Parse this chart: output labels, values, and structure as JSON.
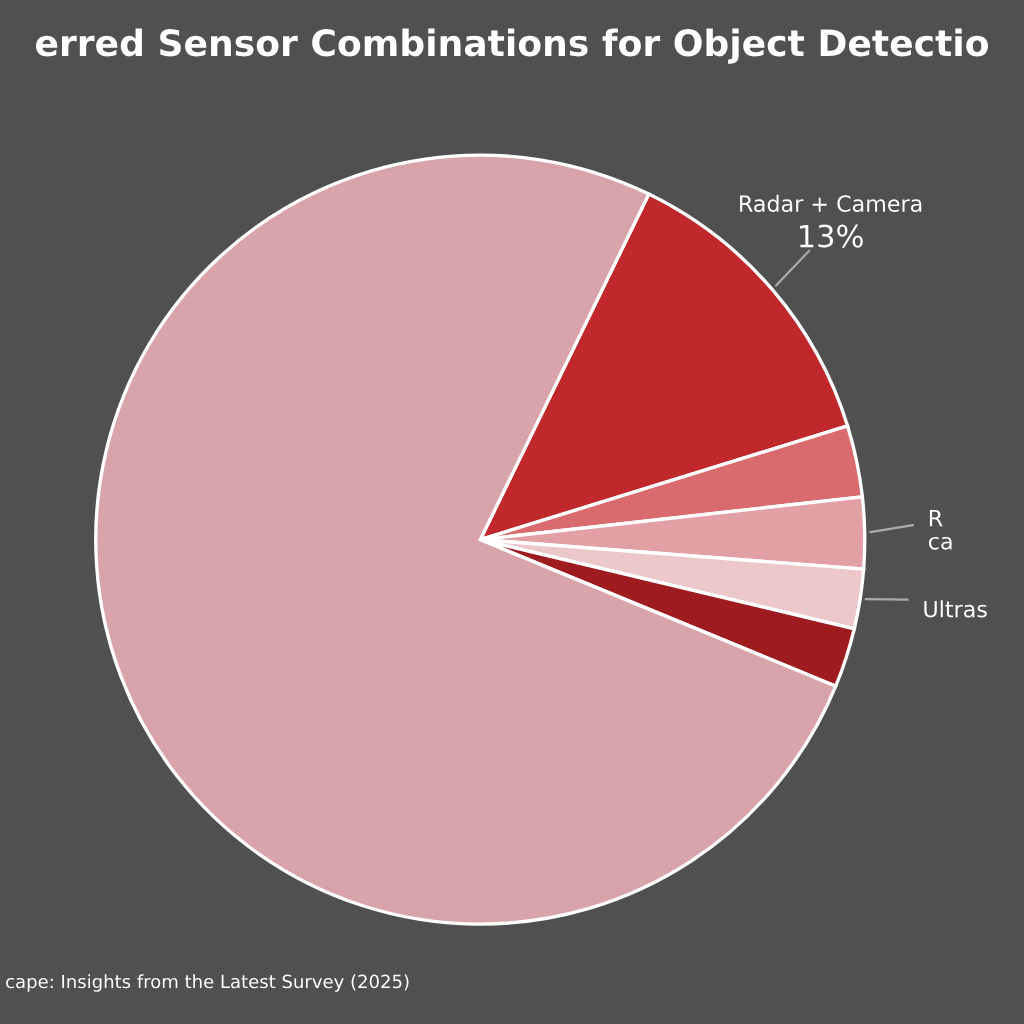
{
  "chart_data": {
    "type": "pie",
    "title": "erred Sensor Combinations for Object Detectio",
    "categories": [
      "Radar + Camera",
      null,
      "R\nca",
      "Ultras",
      null,
      null
    ],
    "values": [
      13,
      3,
      3,
      2.5,
      2.5,
      76
    ],
    "colors": [
      "#c0282c",
      "#d96a6e",
      "#e2a0a5",
      "#edc8ca",
      "#9e1b1f",
      "#d9a3aa"
    ],
    "value_labels": [
      "13%",
      null,
      null,
      null,
      null,
      null
    ],
    "annotations": [
      "cape: Insights from the Latest Survey (2025)"
    ]
  }
}
